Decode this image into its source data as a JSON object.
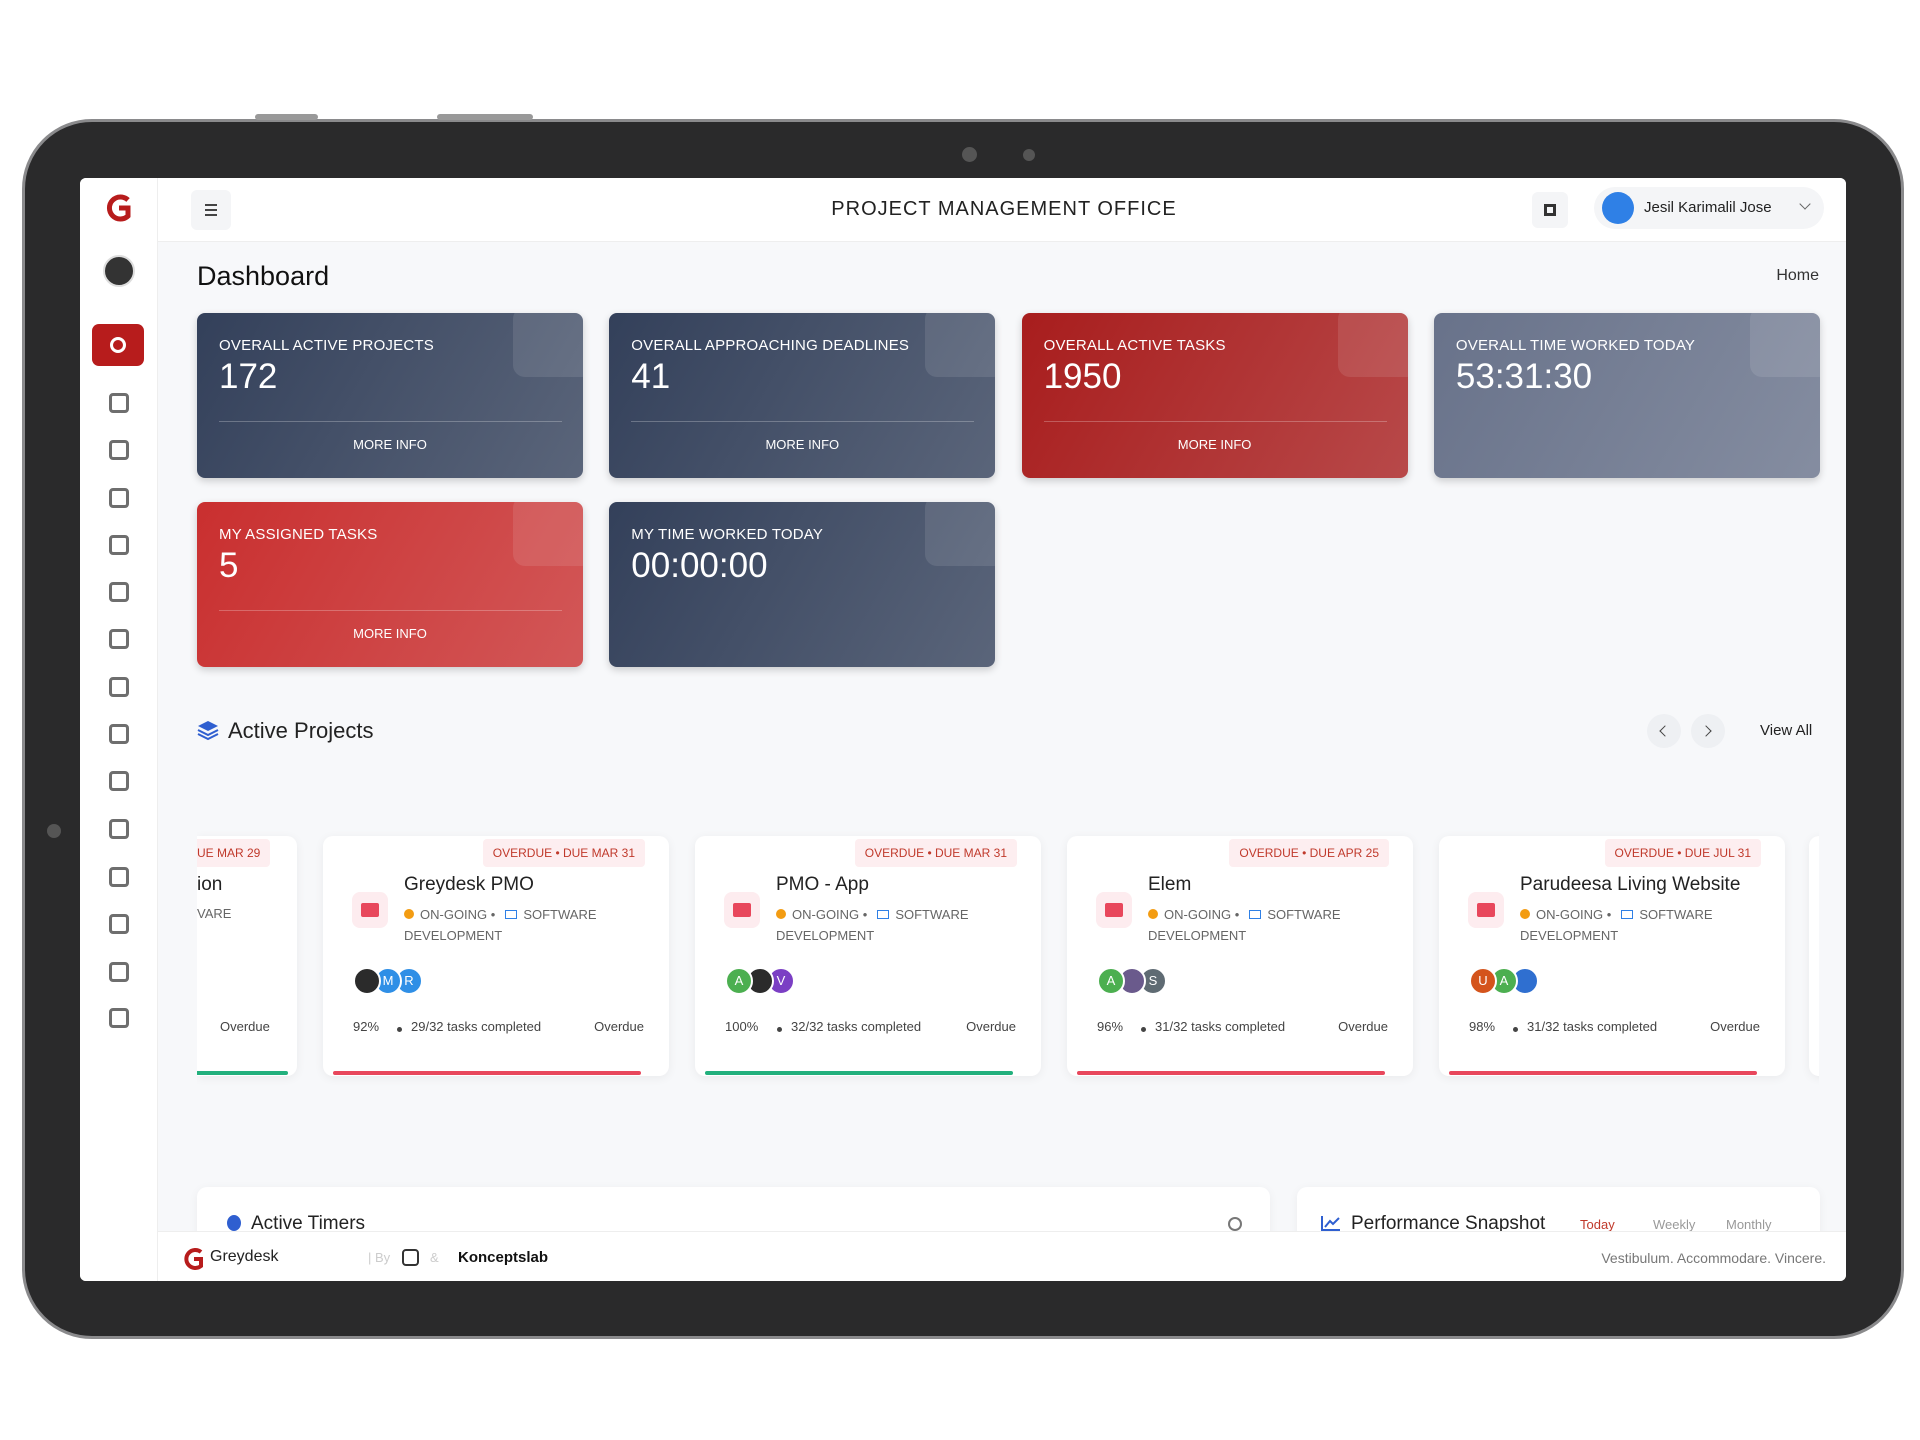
{
  "header": {
    "title": "PROJECT MANAGEMENT OFFICE",
    "user": "Jesil Karimalil Jose"
  },
  "page": {
    "title": "Dashboard",
    "breadcrumb": "Home"
  },
  "stats": [
    {
      "label": "OVERALL ACTIVE PROJECTS",
      "value": "172",
      "link": "MORE INFO",
      "color": "#33405a"
    },
    {
      "label": "OVERALL APPROACHING DEADLINES",
      "value": "41",
      "link": "MORE INFO",
      "color": "#33405a"
    },
    {
      "label": "OVERALL ACTIVE TASKS",
      "value": "1950",
      "link": "MORE INFO",
      "color": "#a81d1d"
    },
    {
      "label": "OVERALL TIME WORKED TODAY",
      "value": "53:31:30",
      "color": "#68728a"
    },
    {
      "label": "MY ASSIGNED TASKS",
      "value": "5",
      "link": "MORE INFO",
      "color": "#c92f2f"
    },
    {
      "label": "MY TIME WORKED TODAY",
      "value": "00:00:00",
      "color": "#33405a"
    }
  ],
  "projects_section": {
    "title": "Active Projects",
    "view_all": "View All"
  },
  "partial_project": {
    "badge": "UE MAR 29",
    "name": "ion",
    "category": "VARE",
    "state": "Overdue",
    "bar_color": "#22b07d"
  },
  "projects": [
    {
      "badge": "OVERDUE • DUE MAR 31",
      "name": "Greydesk PMO",
      "status": "ON-GOING •",
      "category": "SOFTWARE DEVELOPMENT",
      "avatars": [
        {
          "color": "#2b2b2b"
        },
        {
          "label": "M",
          "color": "#2f8fe6"
        },
        {
          "label": "R",
          "color": "#2f8fe6"
        }
      ],
      "percent": "92%",
      "tasks": "29/32 tasks completed",
      "state": "Overdue",
      "bar_color": "#e8475c"
    },
    {
      "badge": "OVERDUE • DUE MAR 31",
      "name": "PMO - App",
      "status": "ON-GOING •",
      "category": "SOFTWARE DEVELOPMENT",
      "avatars": [
        {
          "label": "A",
          "color": "#4caf50"
        },
        {
          "color": "#2b2b2b"
        },
        {
          "label": "V",
          "color": "#7b3fc4"
        }
      ],
      "percent": "100%",
      "tasks": "32/32 tasks completed",
      "state": "Overdue",
      "bar_color": "#22b07d"
    },
    {
      "badge": "OVERDUE • DUE APR 25",
      "name": "Elem",
      "status": "ON-GOING •",
      "category": "SOFTWARE DEVELOPMENT",
      "avatars": [
        {
          "label": "A",
          "color": "#4caf50"
        },
        {
          "color": "#6a5a8c"
        },
        {
          "label": "S",
          "color": "#5f6b73"
        }
      ],
      "percent": "96%",
      "tasks": "31/32 tasks completed",
      "state": "Overdue",
      "bar_color": "#e8475c"
    },
    {
      "badge": "OVERDUE • DUE JUL 31",
      "name": "Parudeesa Living Website",
      "status": "ON-GOING •",
      "category": "SOFTWARE DEVELOPMENT",
      "avatars": [
        {
          "label": "U",
          "color": "#d4541c"
        },
        {
          "label": "A",
          "color": "#4caf50"
        },
        {
          "color": "#2f6fd0"
        }
      ],
      "percent": "98%",
      "tasks": "31/32 tasks completed",
      "state": "Overdue",
      "bar_color": "#e8475c"
    }
  ],
  "panels": {
    "timers": "Active Timers",
    "performance": "Performance Snapshot",
    "tabs": [
      "Today",
      "Weekly",
      "Monthly"
    ]
  },
  "footer": {
    "brand": "Greydesk",
    "by": "| By",
    "amp": "&",
    "partner": "Konceptslab",
    "tagline": "Vestibulum. Accommodare. Vincere."
  }
}
